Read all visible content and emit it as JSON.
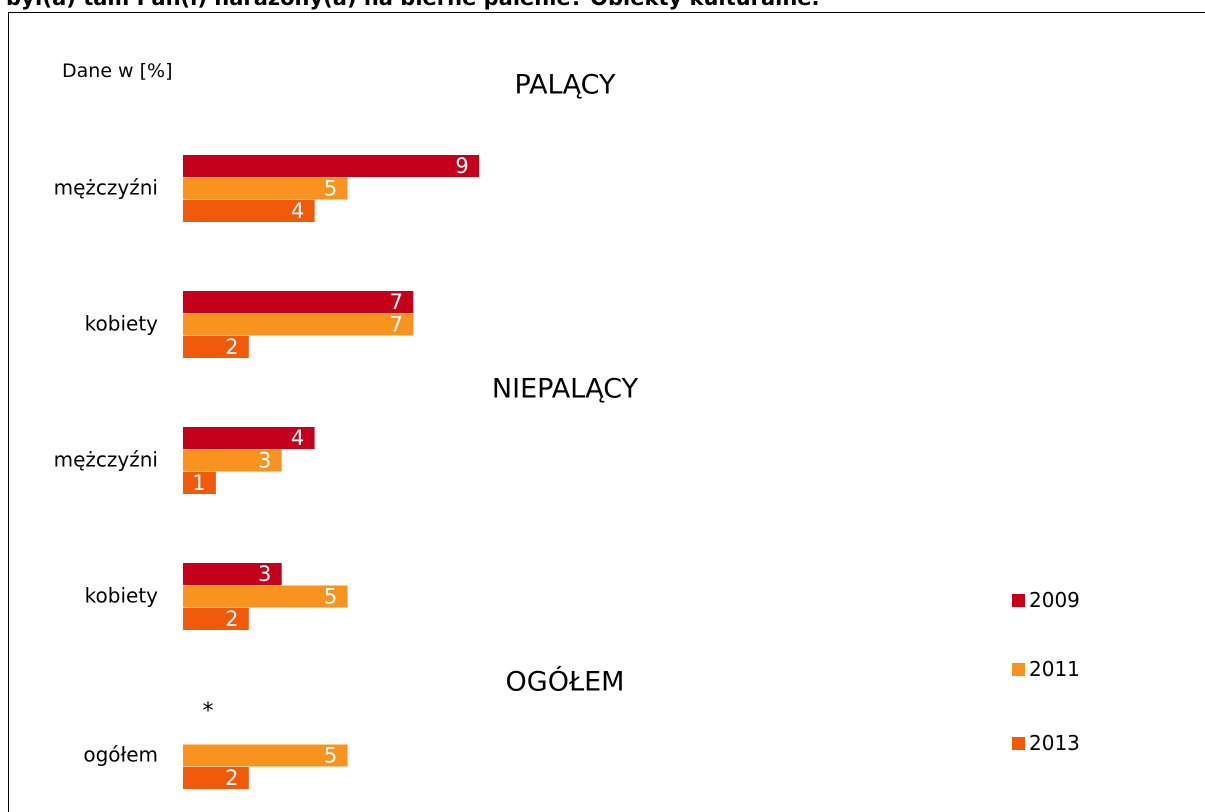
{
  "page": {
    "header_title": "był(a) tam Pan(i) narażony(a) na bierne palenie? Obiekty kulturalne.",
    "note": "Dane w [%]"
  },
  "colors": {
    "2009": "#c4001a",
    "2011": "#f7931e",
    "2013": "#f05a0a"
  },
  "chart_data": {
    "type": "bar",
    "orientation": "horizontal",
    "xlim": [
      0,
      30
    ],
    "legend_position": "bottom-right",
    "series_names": [
      "2009",
      "2011",
      "2013"
    ],
    "groups": [
      {
        "title": "PALĄCY",
        "categories": [
          {
            "label": "mężczyźni",
            "values": [
              9,
              5,
              4
            ],
            "labels": [
              "9",
              "5",
              "4"
            ]
          },
          {
            "label": "kobiety",
            "values": [
              7,
              7,
              2
            ],
            "labels": [
              "7",
              "7",
              "2"
            ]
          }
        ]
      },
      {
        "title": "NIEPALĄCY",
        "categories": [
          {
            "label": "mężczyźni",
            "values": [
              4,
              3,
              1
            ],
            "labels": [
              "4",
              "3",
              "1"
            ]
          },
          {
            "label": "kobiety",
            "values": [
              3,
              5,
              2
            ],
            "labels": [
              "3",
              "5",
              "2"
            ]
          }
        ]
      },
      {
        "title": "OGÓŁEM",
        "categories": [
          {
            "label": "ogółem",
            "values": [
              null,
              5,
              2
            ],
            "labels": [
              "*",
              "5",
              "2"
            ]
          }
        ]
      }
    ]
  }
}
